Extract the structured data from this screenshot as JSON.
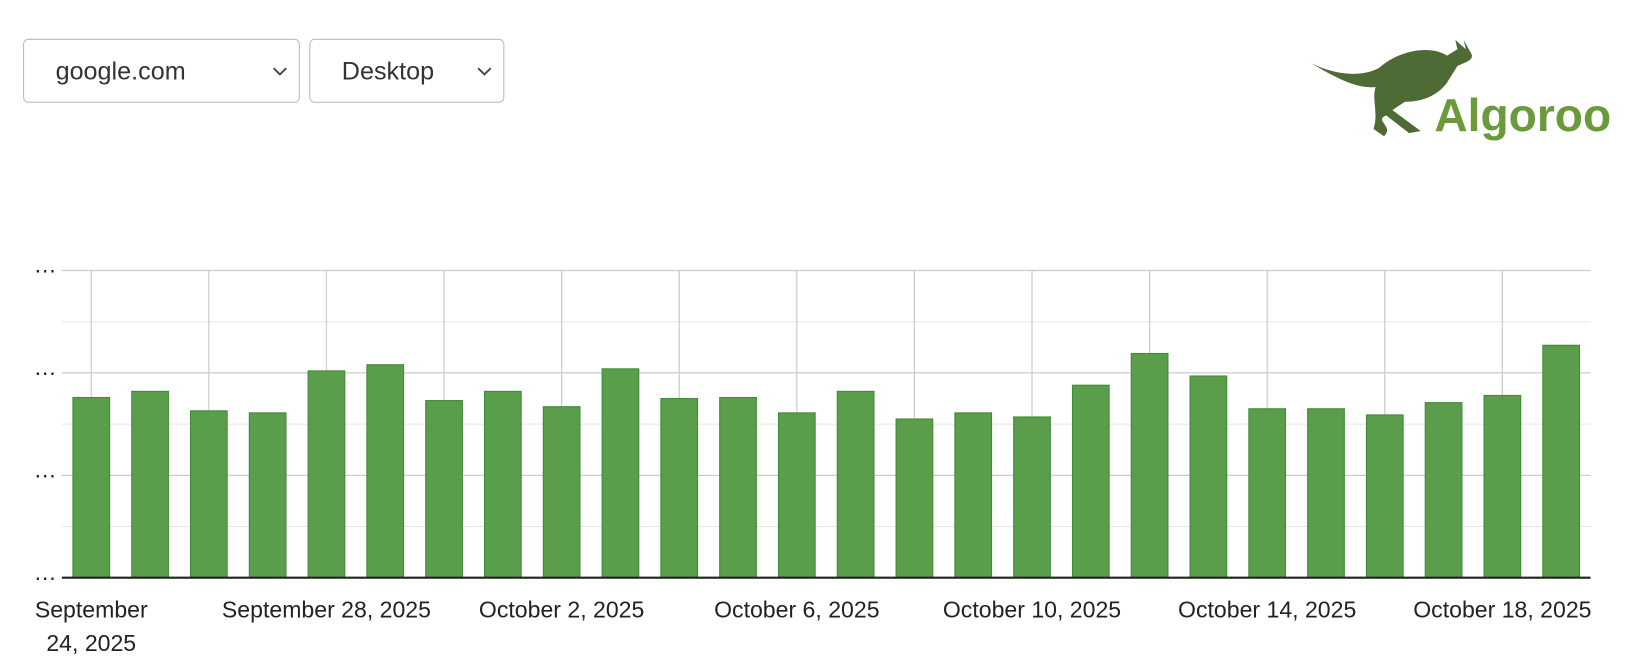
{
  "controls": {
    "site": "google.com",
    "device": "Desktop"
  },
  "logo": {
    "text": "Algoroo"
  },
  "chart_data": {
    "type": "bar",
    "categories": [
      "September 24, 2025",
      null,
      null,
      null,
      "September 28, 2025",
      null,
      null,
      null,
      "October 2, 2025",
      null,
      null,
      null,
      "October 6, 2025",
      null,
      null,
      null,
      "October 10, 2025",
      null,
      null,
      null,
      "October 14, 2025",
      null,
      null,
      null,
      "October 18, 2025",
      null
    ],
    "values": [
      1.76,
      1.82,
      1.63,
      1.61,
      2.02,
      2.08,
      1.73,
      1.82,
      1.67,
      2.04,
      1.75,
      1.76,
      1.61,
      1.82,
      1.55,
      1.61,
      1.57,
      1.88,
      2.19,
      1.97,
      1.65,
      1.65,
      1.59,
      1.71,
      1.78,
      2.27
    ],
    "color": "#5a9e4b",
    "ylim": [
      0,
      3
    ],
    "yticks": [
      {
        "value": 0,
        "label": "…"
      },
      {
        "value": 1,
        "label": "…"
      },
      {
        "value": 2,
        "label": "…"
      },
      {
        "value": 3,
        "label": "…"
      }
    ],
    "grid": true
  }
}
